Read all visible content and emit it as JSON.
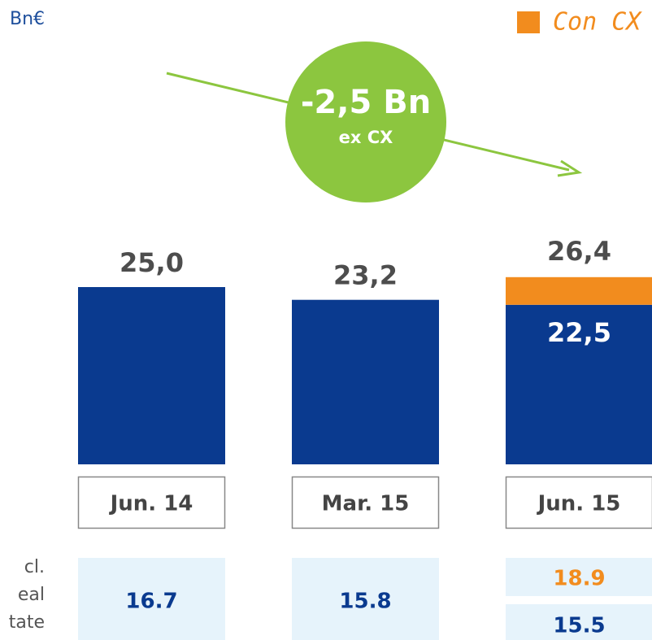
{
  "chart_data": {
    "type": "bar",
    "unit": "Bn€",
    "annotation": {
      "main": "-2,5 Bn",
      "sub": "ex CX"
    },
    "categories": [
      "Jun. 14",
      "Mar. 15",
      "Jun. 15"
    ],
    "series": [
      {
        "color": "#0a3a8f",
        "values": [
          25.0,
          23.2,
          22.5
        ],
        "value_labels": [
          "25,0",
          "23,2",
          "22,5"
        ]
      },
      {
        "name": "Con CX",
        "color": "#f28c1e",
        "values": [
          null,
          null,
          3.9
        ]
      }
    ],
    "totals": [
      null,
      null,
      26.4
    ],
    "total_labels": [
      null,
      null,
      "26,4"
    ],
    "ylim": [
      0,
      30
    ],
    "row_label": [
      "cl.",
      "eal",
      "tate"
    ],
    "row_values": [
      16.7,
      15.8,
      15.5
    ],
    "row_con_cx": [
      null,
      null,
      18.9
    ]
  }
}
